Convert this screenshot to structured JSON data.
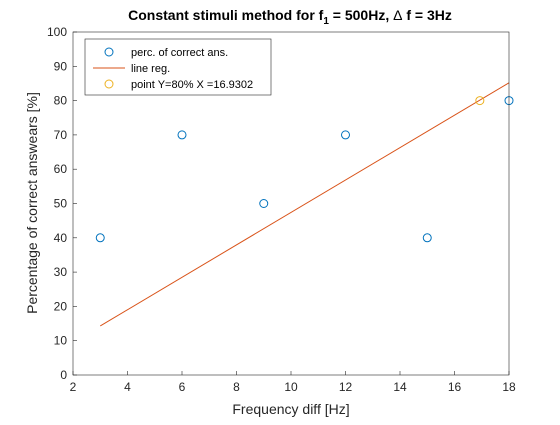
{
  "chart_data": {
    "type": "scatter",
    "title_parts": {
      "prefix": "Constant stimuli method for f",
      "subscript": "1",
      "middle": " = 500Hz, ",
      "delta": "Δ",
      "suffix": " f = 3Hz"
    },
    "xlabel": "Frequency diff [Hz]",
    "ylabel": "Percentage of correct answears [%]",
    "xlim": [
      2,
      18
    ],
    "ylim": [
      0,
      100
    ],
    "xticks": [
      "2",
      "4",
      "6",
      "8",
      "10",
      "12",
      "14",
      "16",
      "18"
    ],
    "yticks": [
      "0",
      "10",
      "20",
      "30",
      "40",
      "50",
      "60",
      "70",
      "80",
      "90",
      "100"
    ],
    "grid": false,
    "legend_position": "top-left",
    "series": [
      {
        "name": "perc. of correct ans.",
        "kind": "scatter",
        "marker": "circle",
        "color": "#0072bd",
        "x": [
          3,
          6,
          9,
          12,
          15,
          18
        ],
        "y": [
          40,
          70,
          50,
          70,
          40,
          80
        ]
      },
      {
        "name": "line reg.",
        "kind": "line",
        "color": "#d95319",
        "x": [
          3,
          18
        ],
        "y": [
          14.3,
          85.2
        ]
      },
      {
        "name": "point Y=80% X =16.9302",
        "kind": "scatter",
        "marker": "circle",
        "color": "#edb120",
        "x": [
          16.9302
        ],
        "y": [
          80
        ]
      }
    ]
  }
}
